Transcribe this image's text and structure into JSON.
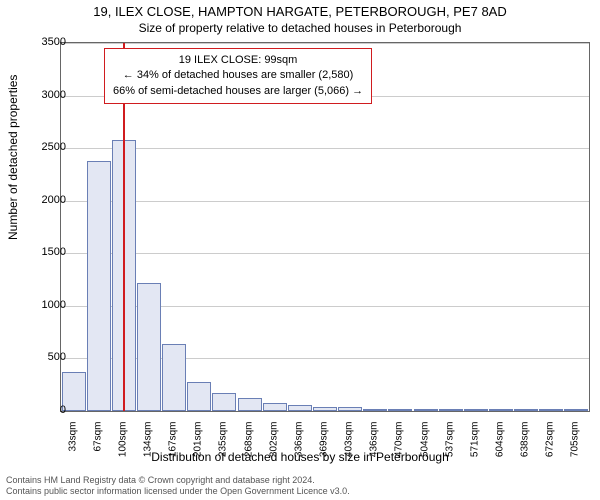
{
  "title": "19, ILEX CLOSE, HAMPTON HARGATE, PETERBOROUGH, PE7 8AD",
  "subtitle": "Size of property relative to detached houses in Peterborough",
  "ylabel": "Number of detached properties",
  "xlabel": "Distribution of detached houses by size in Peterborough",
  "chart": {
    "type": "bar",
    "ylim": [
      0,
      3500
    ],
    "yticks": [
      0,
      500,
      1000,
      1500,
      2000,
      2500,
      3000,
      3500
    ],
    "xticks": [
      "33sqm",
      "67sqm",
      "100sqm",
      "134sqm",
      "167sqm",
      "201sqm",
      "235sqm",
      "268sqm",
      "302sqm",
      "336sqm",
      "369sqm",
      "403sqm",
      "436sqm",
      "470sqm",
      "504sqm",
      "537sqm",
      "571sqm",
      "604sqm",
      "638sqm",
      "672sqm",
      "705sqm"
    ],
    "values": [
      370,
      2380,
      2580,
      1220,
      640,
      280,
      170,
      120,
      80,
      60,
      40,
      40,
      10,
      5,
      3,
      2,
      2,
      1,
      1,
      1,
      0
    ],
    "bar_fill": "#e3e7f3",
    "bar_border": "#6a7fb5",
    "grid_color": "#cccccc",
    "background": "#ffffff",
    "marker_value_sqm": 99,
    "marker_color": "#d01c1f"
  },
  "info_box": {
    "line1": "19 ILEX CLOSE: 99sqm",
    "line2": "← 34% of detached houses are smaller (2,580)",
    "line3": "66% of semi-detached houses are larger (5,066) →",
    "border_color": "#d01c1f"
  },
  "footer": {
    "line1": "Contains HM Land Registry data © Crown copyright and database right 2024.",
    "line2": "Contains public sector information licensed under the Open Government Licence v3.0."
  }
}
